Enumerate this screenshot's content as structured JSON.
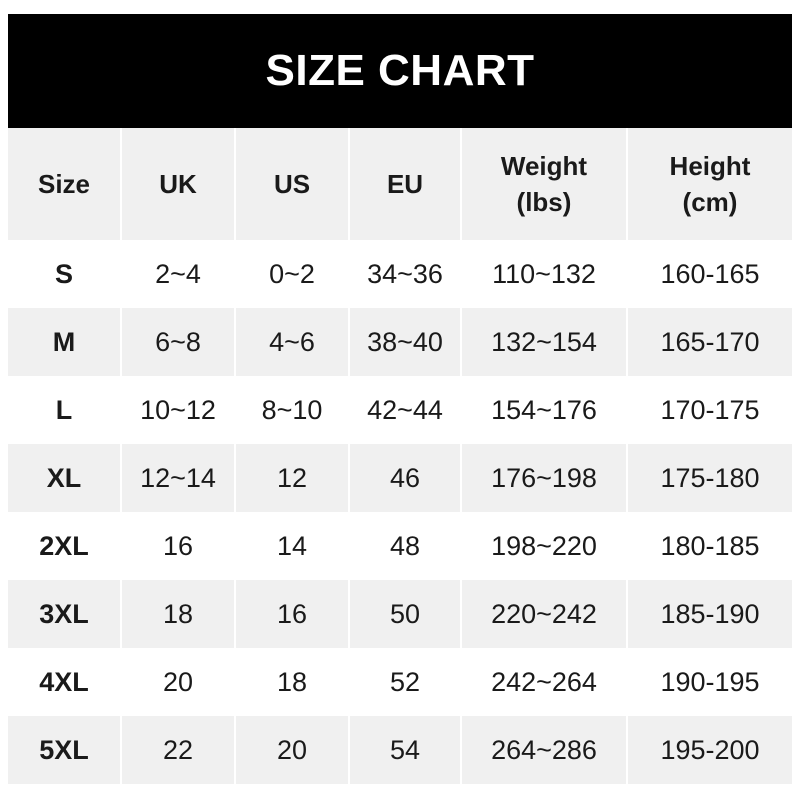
{
  "title": "SIZE CHART",
  "headers": [
    "Size",
    "UK",
    "US",
    "EU",
    "Weight\n(lbs)",
    "Height\n(cm)"
  ],
  "header_lines": [
    [
      "Size"
    ],
    [
      "UK"
    ],
    [
      "US"
    ],
    [
      "EU"
    ],
    [
      "Weight",
      "(lbs)"
    ],
    [
      "Height",
      "(cm)"
    ]
  ],
  "rows": [
    [
      "S",
      "2~4",
      "0~2",
      "34~36",
      "110~132",
      "160-165"
    ],
    [
      "M",
      "6~8",
      "4~6",
      "38~40",
      "132~154",
      "165-170"
    ],
    [
      "L",
      "10~12",
      "8~10",
      "42~44",
      "154~176",
      "170-175"
    ],
    [
      "XL",
      "12~14",
      "12",
      "46",
      "176~198",
      "175-180"
    ],
    [
      "2XL",
      "16",
      "14",
      "48",
      "198~220",
      "180-185"
    ],
    [
      "3XL",
      "18",
      "16",
      "50",
      "220~242",
      "185-190"
    ],
    [
      "4XL",
      "20",
      "18",
      "52",
      "242~264",
      "190-195"
    ],
    [
      "5XL",
      "22",
      "20",
      "54",
      "264~286",
      "195-200"
    ]
  ],
  "colors": {
    "title_bg": "#000000",
    "title_text": "#ffffff",
    "header_bg": "#f0f0f0",
    "row_alt_bg": "#f0f0f0",
    "row_bg": "#ffffff"
  }
}
